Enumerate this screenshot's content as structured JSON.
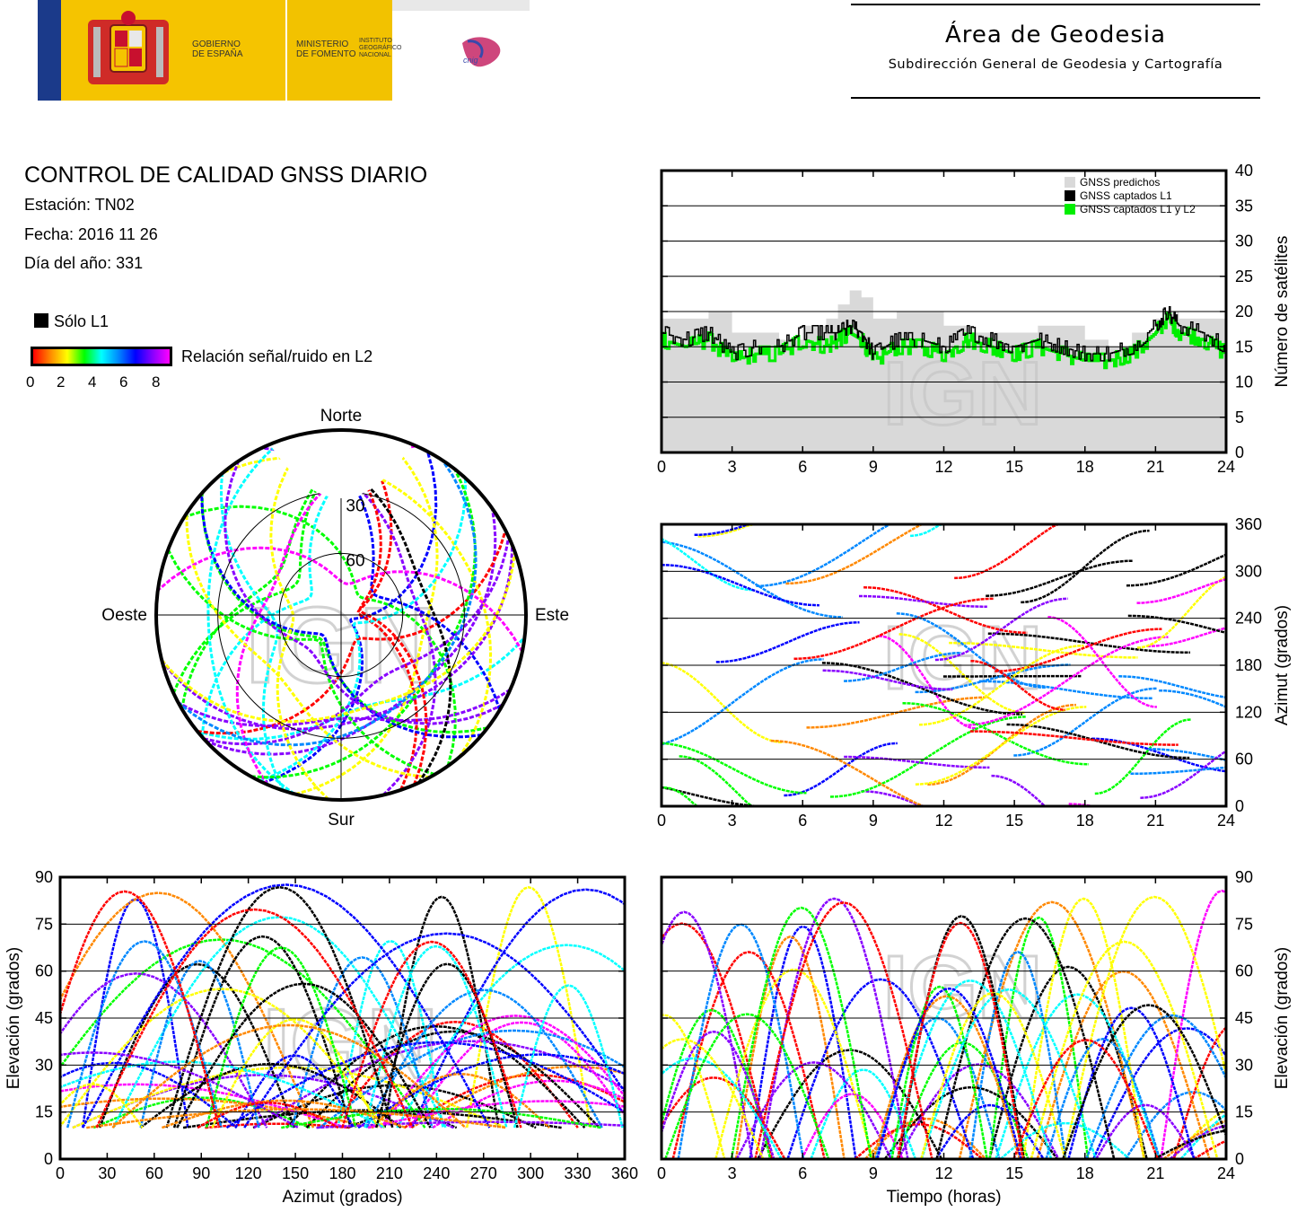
{
  "header": {
    "logo_gobierno": "GOBIERNO\nDE ESPAÑA",
    "logo_ministerio": "MINISTERIO\nDE FOMENTO",
    "logo_instituto": "INSTITUTO\nGEOGRÁFICO\nNACIONAL",
    "logo_cnig": "cnig",
    "area_title": "Área de Geodesia",
    "area_subtitle": "Subdirección General de Geodesia y Cartografía"
  },
  "info": {
    "title": "CONTROL DE CALIDAD GNSS DIARIO",
    "station": "Estación: TN02",
    "date": "Fecha: 2016 11 26",
    "doy": "Día del año: 331"
  },
  "legend": {
    "l1_only": "Sólo L1",
    "snr_label": "Relación señal/ruido en L2",
    "snr_ticks": [
      "0",
      "2",
      "4",
      "6",
      "8"
    ],
    "snr_colors": [
      "#ff0000",
      "#ff8800",
      "#ffff00",
      "#00ff00",
      "#00ffff",
      "#0088ff",
      "#0000ff",
      "#8800ff",
      "#ff00ff"
    ]
  },
  "watermark": "IGN",
  "chart_data": [
    {
      "id": "skyplot",
      "type": "scatter",
      "projection": "polar",
      "title": "",
      "directions": {
        "north": "Norte",
        "south": "Sur",
        "east": "Este",
        "west": "Oeste"
      },
      "elevation_rings": [
        30,
        60
      ],
      "elevation_ring_labels": [
        "30",
        "60"
      ],
      "series_count": 32
    },
    {
      "id": "num-satellites",
      "type": "area",
      "title": "",
      "xlabel": "",
      "ylabel": "Número de satélites",
      "xlim": [
        0,
        24
      ],
      "ylim": [
        0,
        40
      ],
      "x_ticks": [
        "0",
        "3",
        "6",
        "9",
        "12",
        "15",
        "18",
        "21",
        "24"
      ],
      "y_ticks": [
        "0",
        "5",
        "10",
        "15",
        "20",
        "25",
        "30",
        "35",
        "40"
      ],
      "grid": true,
      "legend": [
        "GNSS predichos",
        "GNSS captados L1",
        "GNSS captados L1 y L2"
      ],
      "legend_position": "top-right",
      "series": [
        {
          "name": "GNSS predichos",
          "color": "#d9d9d9",
          "x": [
            0,
            1,
            2,
            3,
            4,
            5,
            6,
            7,
            7.5,
            8,
            8.5,
            9,
            10,
            11,
            12,
            13,
            14,
            15,
            16,
            17,
            18,
            19,
            20,
            21,
            21.5,
            22,
            23,
            24
          ],
          "values": [
            19,
            19,
            20,
            17,
            17,
            16,
            18,
            19,
            21,
            23,
            22,
            19,
            20,
            20,
            18,
            17,
            17,
            17,
            18,
            18,
            16,
            15,
            17,
            19,
            20,
            19,
            19,
            16
          ]
        },
        {
          "name": "GNSS captados L1",
          "color": "#000000",
          "x": [
            0,
            1,
            2,
            3,
            4,
            5,
            6,
            7,
            7.5,
            8,
            8.5,
            9,
            10,
            11,
            12,
            13,
            14,
            15,
            16,
            17,
            18,
            19,
            20,
            21,
            21.5,
            22,
            23,
            24
          ],
          "values": [
            17,
            16,
            17,
            14,
            15,
            15,
            17,
            17,
            17,
            18,
            17,
            14,
            16,
            16,
            15,
            17,
            16,
            15,
            16,
            15,
            14,
            14,
            15,
            18,
            20,
            18,
            17,
            15
          ]
        },
        {
          "name": "GNSS captados L1 y L2",
          "color": "#00ee00",
          "x": [
            0,
            1,
            2,
            3,
            4,
            5,
            6,
            7,
            7.5,
            8,
            8.5,
            9,
            10,
            11,
            12,
            13,
            14,
            15,
            16,
            17,
            18,
            19,
            20,
            21,
            21.5,
            22,
            23,
            24
          ],
          "values": [
            16,
            15,
            16,
            13,
            14,
            14,
            16,
            15,
            16,
            17,
            16,
            13,
            15,
            15,
            14,
            16,
            15,
            14,
            15,
            14,
            13,
            13,
            14,
            17,
            19,
            17,
            16,
            14
          ]
        }
      ]
    },
    {
      "id": "azimuth-time",
      "type": "scatter",
      "title": "",
      "xlabel": "",
      "ylabel": "Azimut (grados)",
      "xlim": [
        0,
        24
      ],
      "ylim": [
        0,
        360
      ],
      "x_ticks": [
        "0",
        "3",
        "6",
        "9",
        "12",
        "15",
        "18",
        "21",
        "24"
      ],
      "y_ticks": [
        "0",
        "60",
        "120",
        "180",
        "240",
        "300",
        "360"
      ],
      "grid": true,
      "series_count": 32
    },
    {
      "id": "elevation-azimuth",
      "type": "scatter",
      "title": "",
      "xlabel": "Azimut (grados)",
      "ylabel": "Elevación (grados)",
      "xlim": [
        0,
        360
      ],
      "ylim": [
        0,
        90
      ],
      "x_ticks": [
        "0",
        "30",
        "60",
        "90",
        "120",
        "150",
        "180",
        "210",
        "240",
        "270",
        "300",
        "330",
        "360"
      ],
      "y_ticks": [
        "0",
        "15",
        "30",
        "45",
        "60",
        "75",
        "90"
      ],
      "grid": true,
      "series_count": 32
    },
    {
      "id": "elevation-time",
      "type": "scatter",
      "title": "",
      "xlabel": "Tiempo (horas)",
      "ylabel": "Elevación (grados)",
      "xlim": [
        0,
        24
      ],
      "ylim": [
        0,
        90
      ],
      "x_ticks": [
        "0",
        "3",
        "6",
        "9",
        "12",
        "15",
        "18",
        "21",
        "24"
      ],
      "y_ticks": [
        "0",
        "15",
        "30",
        "45",
        "60",
        "75",
        "90"
      ],
      "grid": true,
      "series_count": 32
    }
  ]
}
